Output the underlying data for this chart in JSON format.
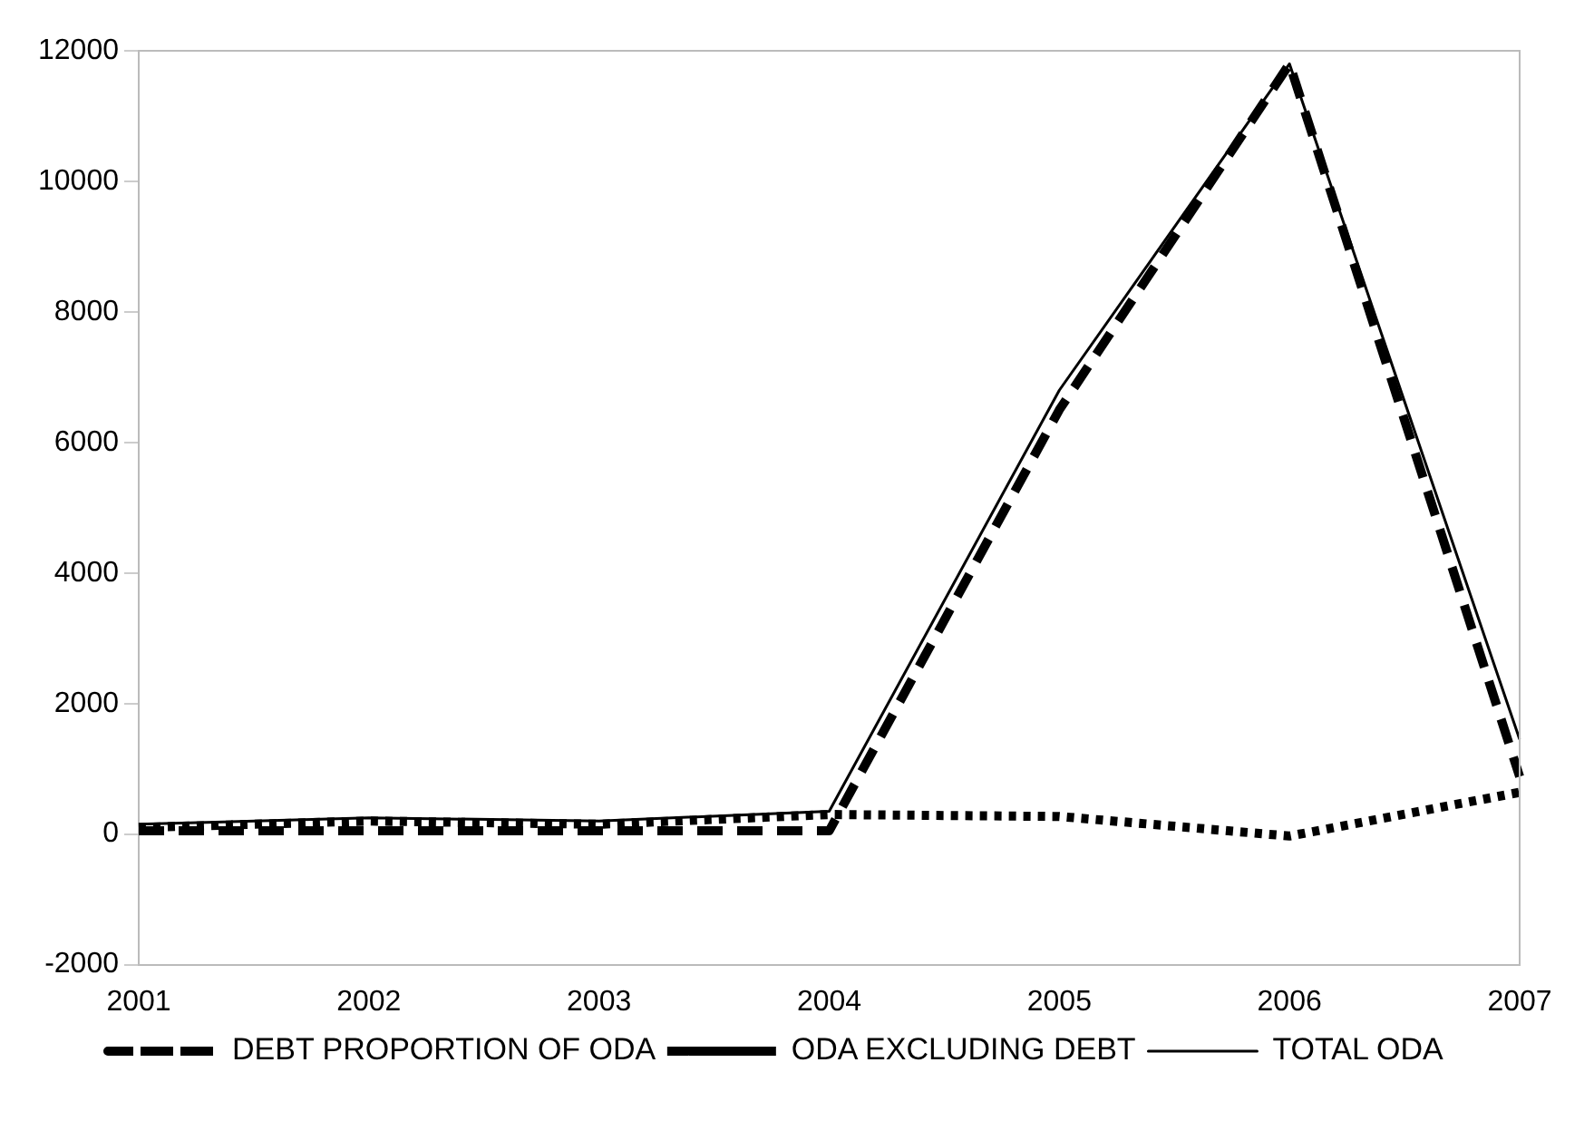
{
  "chart_data": {
    "type": "line",
    "categories": [
      "2001",
      "2002",
      "2003",
      "2004",
      "2005",
      "2006",
      "2007"
    ],
    "series": [
      {
        "name": "DEBT PROPORTION OF ODA",
        "color": "#000000",
        "line_style": "dashed",
        "values": [
          50,
          50,
          50,
          50,
          6500,
          11800,
          880
        ]
      },
      {
        "name": "ODA EXCLUDING DEBT",
        "color": "#000000",
        "line_style": "dotted",
        "values": [
          100,
          200,
          150,
          300,
          270,
          -30,
          640
        ]
      },
      {
        "name": "TOTAL ODA",
        "color": "#000000",
        "line_style": "solid",
        "values": [
          150,
          250,
          200,
          350,
          6800,
          11800,
          1450
        ]
      }
    ],
    "ylim": [
      -2000,
      12000
    ],
    "yticks": [
      -2000,
      0,
      2000,
      4000,
      6000,
      8000,
      10000,
      12000
    ],
    "grid": false,
    "legend": "bottom",
    "marker": "none"
  }
}
